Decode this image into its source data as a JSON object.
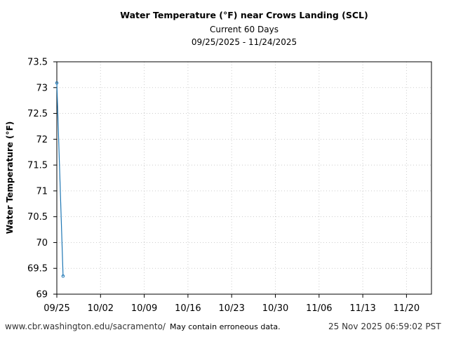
{
  "chart_data": {
    "type": "line",
    "title": "Water Temperature (°F) near Crows Landing (SCL)",
    "subtitle": "Current 60 Days",
    "date_range": "09/25/2025 - 11/24/2025",
    "ylabel": "Water Temperature (°F)",
    "xlabel": "",
    "xlim": [
      "2025-09-25",
      "2025-11-24"
    ],
    "ylim": [
      69,
      73.5
    ],
    "x_ticks": [
      "09/25",
      "10/02",
      "10/09",
      "10/16",
      "10/23",
      "10/30",
      "11/06",
      "11/13",
      "11/20"
    ],
    "y_ticks": [
      "69",
      "69.5",
      "70",
      "70.5",
      "71",
      "71.5",
      "72",
      "72.5",
      "73",
      "73.5"
    ],
    "grid": true,
    "series": [
      {
        "x": [
          "2025-09-25",
          "2025-09-26"
        ],
        "values": [
          73.09,
          69.35
        ],
        "color": "#1f77b4"
      }
    ]
  },
  "footer": {
    "url": "www.cbr.washington.edu/sacramento/",
    "disclaimer": "May contain erroneous data.",
    "timestamp": "25 Nov 2025 06:59:02 PST"
  }
}
